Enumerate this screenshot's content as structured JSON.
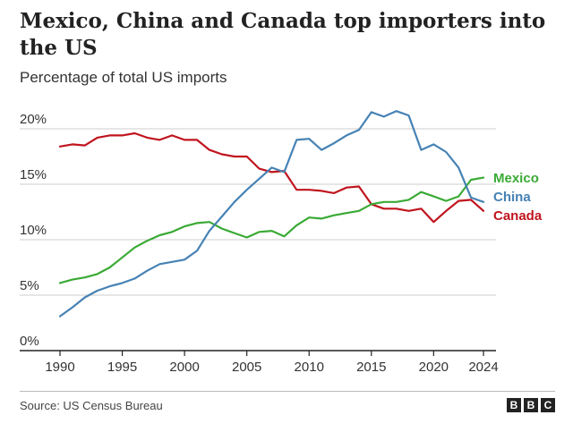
{
  "header": {
    "title": "Mexico, China and Canada top importers into the US",
    "subtitle": "Percentage of total US imports"
  },
  "footer": {
    "source": "Source: US Census Bureau",
    "logo_letters": [
      "B",
      "B",
      "C"
    ]
  },
  "colors": {
    "mexico": "#3aaa35",
    "china": "#4682b4",
    "canada": "#c0141e",
    "grid": "#cccccc",
    "axis": "#222222"
  },
  "chart_data": {
    "type": "line",
    "title": "Mexico, China and Canada top importers into the US",
    "subtitle": "Percentage of total US imports",
    "xlabel": "",
    "ylabel": "",
    "xlim": [
      1990,
      2024
    ],
    "ylim": [
      0,
      20
    ],
    "x_ticks": [
      1990,
      1995,
      2000,
      2005,
      2010,
      2015,
      2020,
      2024
    ],
    "y_ticks": [
      0,
      5,
      10,
      15,
      20
    ],
    "y_tick_labels": [
      "0%",
      "5%",
      "10%",
      "15%",
      "20%"
    ],
    "grid": true,
    "legend": "inline-right",
    "x": [
      1990,
      1991,
      1992,
      1993,
      1994,
      1995,
      1996,
      1997,
      1998,
      1999,
      2000,
      2001,
      2002,
      2003,
      2004,
      2005,
      2006,
      2007,
      2008,
      2009,
      2010,
      2011,
      2012,
      2013,
      2014,
      2015,
      2016,
      2017,
      2018,
      2019,
      2020,
      2021,
      2022,
      2023,
      2024
    ],
    "series": [
      {
        "name": "Mexico",
        "color": "#3aaa35",
        "values": [
          6.1,
          6.4,
          6.6,
          6.9,
          7.5,
          8.4,
          9.3,
          9.9,
          10.4,
          10.7,
          11.2,
          11.5,
          11.6,
          11.0,
          10.6,
          10.2,
          10.7,
          10.8,
          10.3,
          11.3,
          12.0,
          11.9,
          12.2,
          12.4,
          12.6,
          13.2,
          13.4,
          13.4,
          13.6,
          14.3,
          13.9,
          13.5,
          13.9,
          15.4,
          15.6
        ]
      },
      {
        "name": "China",
        "color": "#4682b4",
        "values": [
          3.1,
          3.9,
          4.8,
          5.4,
          5.8,
          6.1,
          6.5,
          7.2,
          7.8,
          8.0,
          8.2,
          9.0,
          10.8,
          12.1,
          13.4,
          14.5,
          15.5,
          16.5,
          16.1,
          19.0,
          19.1,
          18.1,
          18.7,
          19.4,
          19.9,
          21.5,
          21.1,
          21.6,
          21.2,
          18.1,
          18.6,
          17.9,
          16.5,
          13.8,
          13.4
        ]
      },
      {
        "name": "Canada",
        "color": "#c0141e",
        "values": [
          18.4,
          18.6,
          18.5,
          19.2,
          19.4,
          19.4,
          19.6,
          19.2,
          19.0,
          19.4,
          19.0,
          19.0,
          18.1,
          17.7,
          17.5,
          17.5,
          16.4,
          16.1,
          16.2,
          14.5,
          14.5,
          14.4,
          14.2,
          14.7,
          14.8,
          13.2,
          12.8,
          12.8,
          12.6,
          12.8,
          11.6,
          12.6,
          13.5,
          13.6,
          12.6
        ]
      }
    ]
  }
}
